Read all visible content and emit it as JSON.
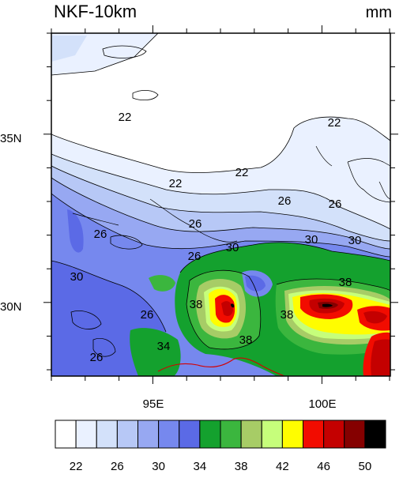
{
  "title": "NKF-10km",
  "units": "mm",
  "y_ticks": [
    {
      "label": "35N",
      "value": 35
    },
    {
      "label": "30N",
      "value": 30
    }
  ],
  "x_ticks": [
    {
      "label": "95E",
      "value": 95
    },
    {
      "label": "100E",
      "value": 100
    }
  ],
  "contour_labels": [
    "22",
    "22",
    "22",
    "22",
    "26",
    "26",
    "26",
    "26",
    "30",
    "30",
    "30",
    "26",
    "30",
    "38",
    "38",
    "38",
    "38",
    "26",
    "26",
    "34"
  ],
  "colorbar": {
    "colors": [
      "#ffffff",
      "#eaf1ff",
      "#d3e1fa",
      "#b7c8f6",
      "#97a8f2",
      "#7688ee",
      "#5b6ae6",
      "#14a12e",
      "#3bb63e",
      "#a7cc66",
      "#c6fe7b",
      "#fffd00",
      "#f20c00",
      "#c40000",
      "#850000",
      "#000000"
    ],
    "labels": [
      "22",
      "26",
      "30",
      "34",
      "38",
      "42",
      "46",
      "50"
    ]
  }
}
